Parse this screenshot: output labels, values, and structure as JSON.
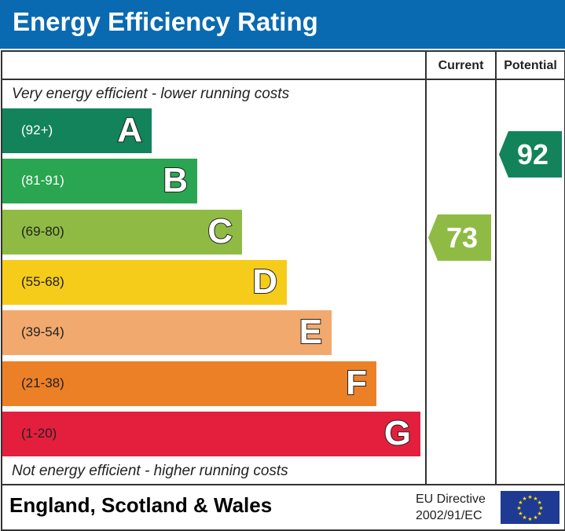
{
  "header": {
    "title": "Energy Efficiency Rating"
  },
  "columns": {
    "current": "Current",
    "potential": "Potential"
  },
  "top_note": "Very energy efficient - lower running costs",
  "bottom_note": "Not energy efficient - higher running costs",
  "chart_data": {
    "type": "bar",
    "categories": [
      "A",
      "B",
      "C",
      "D",
      "E",
      "F",
      "G"
    ],
    "ranges": [
      "(92+)",
      "(81-91)",
      "(69-80)",
      "(55-68)",
      "(39-54)",
      "(21-38)",
      "(1-20)"
    ],
    "colors": [
      "#12835a",
      "#2aa551",
      "#8fbb44",
      "#f5cc1a",
      "#f2a96d",
      "#ec8027",
      "#e31f3d"
    ],
    "range_text_colors": [
      "#ffffff",
      "#ffffff",
      "#222222",
      "#222222",
      "#222222",
      "#222222",
      "#222222"
    ],
    "current": {
      "value": 73,
      "band": "C",
      "color": "#8fbb44"
    },
    "potential": {
      "value": 92,
      "band": "A",
      "color": "#12835a"
    }
  },
  "footer": {
    "region": "England, Scotland & Wales",
    "directive_line1": "EU Directive",
    "directive_line2": "2002/91/EC",
    "flag": "eu-flag-icon"
  }
}
